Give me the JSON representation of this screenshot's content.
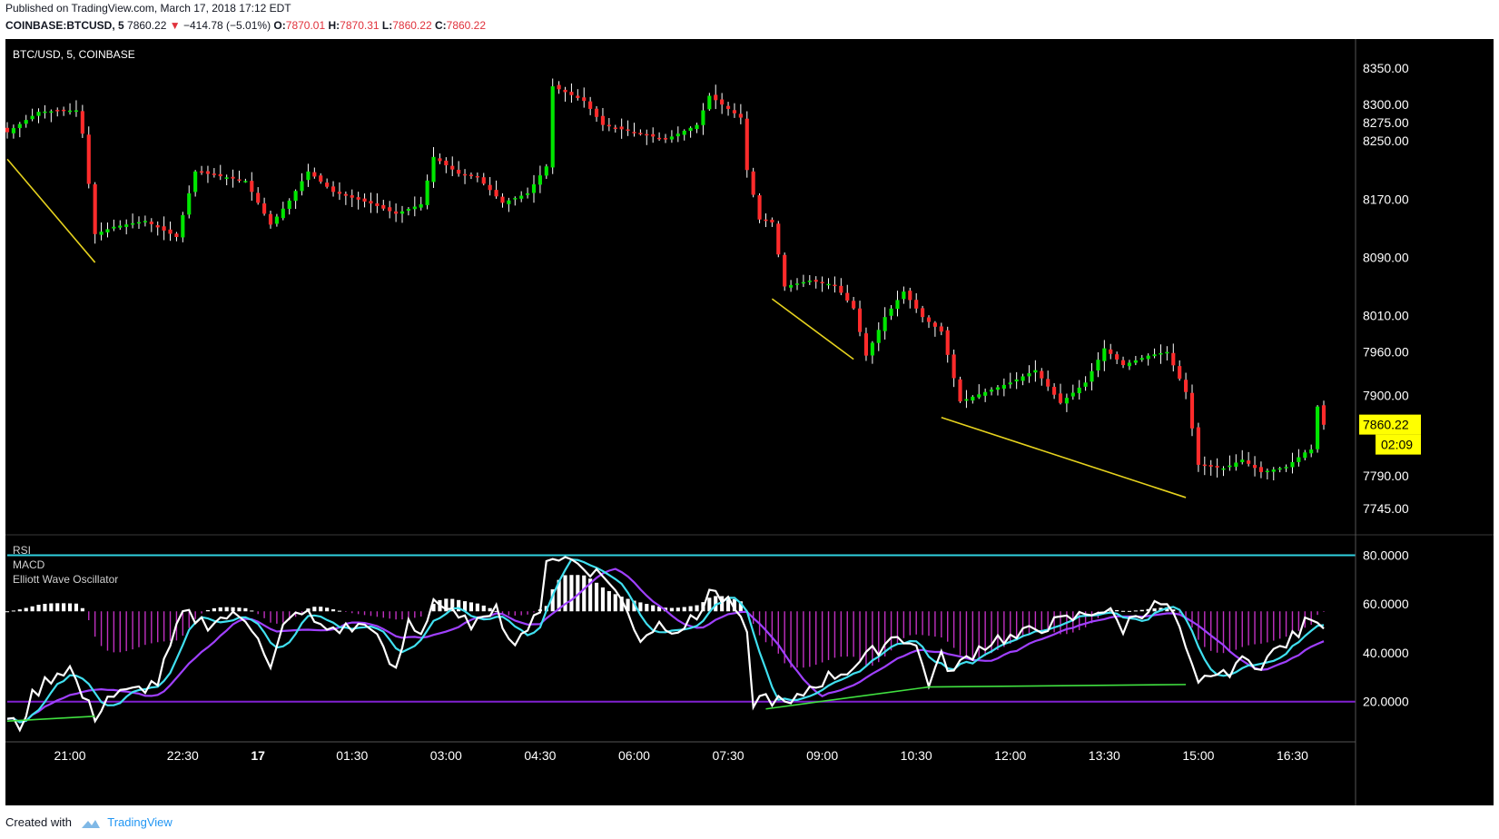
{
  "header": {
    "published": "Published on TradingView.com, March 17, 2018 17:12 EDT",
    "symbol": "COINBASE:BTCUSD, 5",
    "last": "7860.22",
    "change": "−414.78 (−5.01%)",
    "o_label": "O:",
    "o": "7870.01",
    "h_label": "H:",
    "h": "7870.31",
    "l_label": "L:",
    "l": "7860.22",
    "c_label": "C:",
    "c": "7860.22"
  },
  "footer": {
    "created_with": "Created with",
    "brand": "TradingView"
  },
  "colors": {
    "background": "#000000",
    "up": "#00e600",
    "down": "#ff2b2b",
    "trendline": "#e6d21e",
    "rsi_line": "#ffffff",
    "rsi_sma": "#40e0f0",
    "rsi_slow": "#a040ff",
    "histogram_pos": "#ffffff",
    "histogram_neg": "#c030c0",
    "rsi_upper_band": "#30d0e0",
    "rsi_lower_band": "#8020d0",
    "divergence": "#40e040",
    "price_tag": "#ffff00"
  },
  "chart_data": [
    {
      "type": "candlestick",
      "title": "BTC/USD, 5, COINBASE",
      "ylim": [
        7720,
        8380
      ],
      "y_ticks": [
        8350,
        8300,
        8275,
        8250,
        8170,
        8090,
        8010,
        7960,
        7900,
        7790,
        7745
      ],
      "y_tick_labels": [
        "8350.00",
        "8300.00",
        "8275.00",
        "8250.00",
        "8170.00",
        "8090.00",
        "8010.00",
        "7960.00",
        "7900.00",
        "7790.00",
        "7745.00"
      ],
      "last_price": "7860.22",
      "countdown": "02:09",
      "x_tick_labels": [
        "21:00",
        "22:30",
        "17",
        "01:30",
        "03:00",
        "04:30",
        "06:00",
        "07:30",
        "09:00",
        "10:30",
        "12:00",
        "13:30",
        "15:00",
        "16:30"
      ],
      "x_tick_index": [
        10,
        28,
        40,
        55,
        70,
        85,
        100,
        115,
        130,
        145,
        160,
        175,
        190,
        205
      ],
      "candle_count": 211,
      "anchors": [
        [
          0,
          8262
        ],
        [
          5,
          8290
        ],
        [
          11,
          8292
        ],
        [
          12,
          8260
        ],
        [
          14,
          8122
        ],
        [
          17,
          8132
        ],
        [
          22,
          8140
        ],
        [
          27,
          8118
        ],
        [
          30,
          8208
        ],
        [
          38,
          8195
        ],
        [
          42,
          8135
        ],
        [
          45,
          8168
        ],
        [
          48,
          8208
        ],
        [
          52,
          8180
        ],
        [
          55,
          8172
        ],
        [
          58,
          8164
        ],
        [
          62,
          8150
        ],
        [
          66,
          8163
        ],
        [
          68,
          8228
        ],
        [
          72,
          8205
        ],
        [
          75,
          8200
        ],
        [
          79,
          8165
        ],
        [
          83,
          8178
        ],
        [
          86,
          8215
        ],
        [
          87,
          8325
        ],
        [
          92,
          8305
        ],
        [
          95,
          8272
        ],
        [
          100,
          8262
        ],
        [
          105,
          8252
        ],
        [
          110,
          8272
        ],
        [
          112,
          8312
        ],
        [
          117,
          8282
        ],
        [
          118,
          8210
        ],
        [
          120,
          8142
        ],
        [
          122,
          8138
        ],
        [
          124,
          8050
        ],
        [
          128,
          8058
        ],
        [
          132,
          8052
        ],
        [
          135,
          8020
        ],
        [
          137,
          7955
        ],
        [
          140,
          8008
        ],
        [
          143,
          8043
        ],
        [
          146,
          8008
        ],
        [
          149,
          7988
        ],
        [
          152,
          7892
        ],
        [
          156,
          7905
        ],
        [
          160,
          7918
        ],
        [
          164,
          7935
        ],
        [
          168,
          7890
        ],
        [
          172,
          7918
        ],
        [
          175,
          7965
        ],
        [
          178,
          7942
        ],
        [
          182,
          7955
        ],
        [
          185,
          7960
        ],
        [
          188,
          7905
        ],
        [
          190,
          7805
        ],
        [
          194,
          7800
        ],
        [
          197,
          7812
        ],
        [
          200,
          7795
        ],
        [
          204,
          7802
        ],
        [
          207,
          7822
        ],
        [
          208,
          7826
        ],
        [
          209,
          7885
        ],
        [
          210,
          7860
        ]
      ],
      "trendlines": [
        {
          "from": [
            0,
            8225
          ],
          "to": [
            14,
            8083
          ]
        },
        {
          "from": [
            122,
            8033
          ],
          "to": [
            135,
            7950
          ]
        },
        {
          "from": [
            149,
            7870
          ],
          "to": [
            188,
            7760
          ]
        }
      ]
    },
    {
      "type": "line",
      "title": "RSI",
      "indicators": [
        "RSI",
        "MACD",
        "Elliott Wave Oscillator"
      ],
      "ylim": [
        5,
        85
      ],
      "y_ticks": [
        80,
        60,
        40,
        20
      ],
      "y_tick_labels": [
        "80.0000",
        "60.0000",
        "40.0000",
        "20.0000"
      ],
      "upper_band": 80,
      "lower_band": 20,
      "zero_level": 57,
      "rsi_anchors": [
        [
          0,
          12
        ],
        [
          2,
          10
        ],
        [
          4,
          22
        ],
        [
          6,
          28
        ],
        [
          8,
          32
        ],
        [
          10,
          34
        ],
        [
          12,
          22
        ],
        [
          14,
          14
        ],
        [
          16,
          22
        ],
        [
          20,
          24
        ],
        [
          24,
          28
        ],
        [
          28,
          56
        ],
        [
          32,
          52
        ],
        [
          35,
          55
        ],
        [
          38,
          54
        ],
        [
          40,
          48
        ],
        [
          42,
          33
        ],
        [
          44,
          50
        ],
        [
          47,
          58
        ],
        [
          50,
          50
        ],
        [
          55,
          50
        ],
        [
          58,
          52
        ],
        [
          60,
          40
        ],
        [
          62,
          32
        ],
        [
          64,
          53
        ],
        [
          66,
          48
        ],
        [
          68,
          62
        ],
        [
          70,
          58
        ],
        [
          72,
          53
        ],
        [
          76,
          52
        ],
        [
          78,
          62
        ],
        [
          80,
          44
        ],
        [
          82,
          48
        ],
        [
          85,
          55
        ],
        [
          86,
          80
        ],
        [
          90,
          78
        ],
        [
          93,
          74
        ],
        [
          96,
          70
        ],
        [
          99,
          56
        ],
        [
          101,
          46
        ],
        [
          104,
          52
        ],
        [
          107,
          50
        ],
        [
          110,
          54
        ],
        [
          112,
          66
        ],
        [
          116,
          58
        ],
        [
          118,
          46
        ],
        [
          119,
          20
        ],
        [
          121,
          22
        ],
        [
          123,
          20
        ],
        [
          125,
          18
        ],
        [
          128,
          26
        ],
        [
          131,
          30
        ],
        [
          134,
          33
        ],
        [
          137,
          38
        ],
        [
          140,
          44
        ],
        [
          142,
          48
        ],
        [
          145,
          42
        ],
        [
          147,
          28
        ],
        [
          149,
          38
        ],
        [
          151,
          32
        ],
        [
          153,
          38
        ],
        [
          155,
          42
        ],
        [
          158,
          46
        ],
        [
          161,
          46
        ],
        [
          164,
          50
        ],
        [
          167,
          52
        ],
        [
          170,
          54
        ],
        [
          172,
          56
        ],
        [
          174,
          58
        ],
        [
          176,
          56
        ],
        [
          178,
          50
        ],
        [
          180,
          56
        ],
        [
          182,
          58
        ],
        [
          184,
          60
        ],
        [
          186,
          56
        ],
        [
          188,
          40
        ],
        [
          190,
          26
        ],
        [
          192,
          32
        ],
        [
          194,
          30
        ],
        [
          196,
          36
        ],
        [
          200,
          36
        ],
        [
          202,
          40
        ],
        [
          204,
          44
        ],
        [
          206,
          48
        ],
        [
          208,
          56
        ],
        [
          210,
          52
        ]
      ],
      "divergence_lines": [
        {
          "from": [
            0,
            12
          ],
          "to": [
            14,
            14
          ]
        },
        {
          "from": [
            121,
            17
          ],
          "to": [
            147,
            26
          ]
        },
        {
          "from": [
            147,
            26
          ],
          "to": [
            188,
            27
          ]
        }
      ]
    }
  ]
}
